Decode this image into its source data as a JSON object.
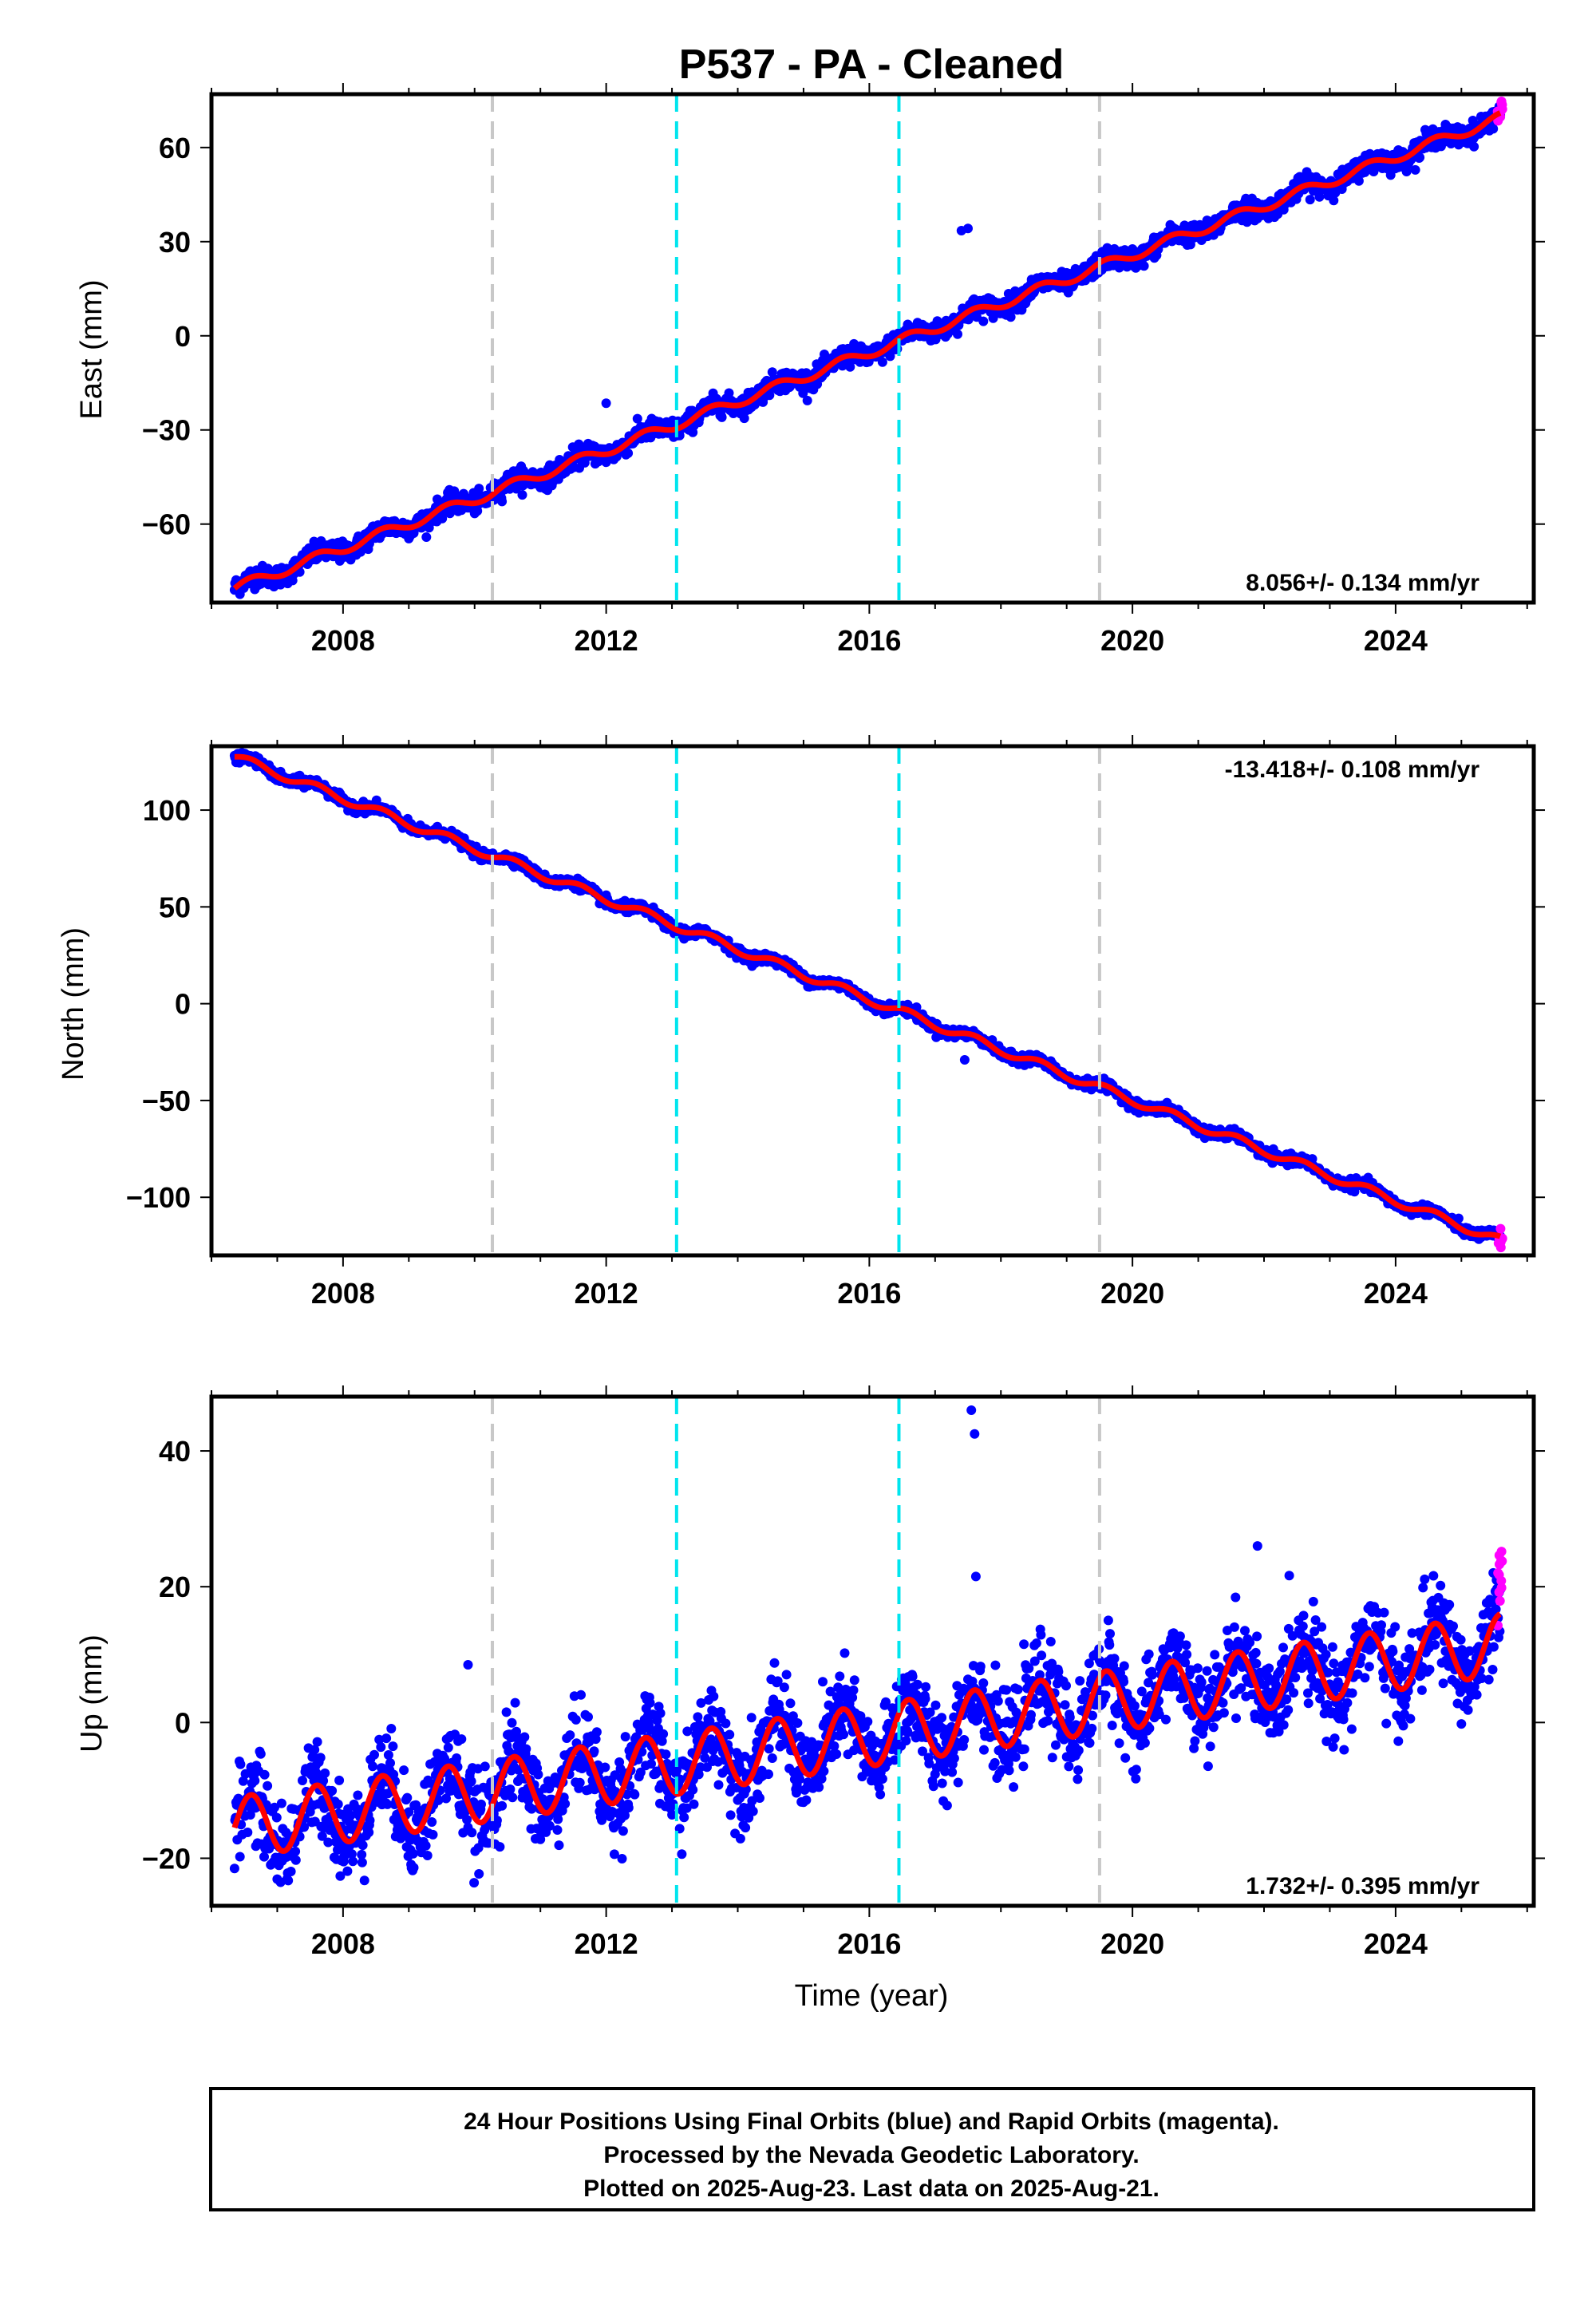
{
  "title": "P537  - PA - Cleaned",
  "x_axis_label": "Time (year)",
  "colors": {
    "final_orbits": "#0000ff",
    "rapid_orbits": "#ff00ff",
    "model_fit": "#ff0000",
    "equipment_change": "#c8c8c8",
    "event": "#00e5ee",
    "frame": "#000000"
  },
  "footer": {
    "line1": "24 Hour Positions Using Final Orbits (blue) and Rapid Orbits (magenta).",
    "line2": "Processed by the Nevada Geodetic Laboratory.",
    "line3": "Plotted on 2025-Aug-23. Last data on 2025-Aug-21."
  },
  "chart_data": [
    {
      "type": "scatter",
      "component": "East",
      "ylabel": "East (mm)",
      "xlim": [
        2006.0,
        2026.1
      ],
      "ylim": [
        -85,
        77
      ],
      "x_ticks": [
        2008,
        2012,
        2016,
        2020,
        2024
      ],
      "x_tick_labels": [
        "2008",
        "2012",
        "2016",
        "2020",
        "2024"
      ],
      "y_ticks": [
        -60,
        -30,
        0,
        30,
        60
      ],
      "y_tick_labels": [
        "−60",
        "−30",
        "0",
        "30",
        "60"
      ],
      "rate_label": "8.056+/- 0.134 mm/yr",
      "rate_position": "bottom-right",
      "series": [
        {
          "kind": "final_orbits",
          "trend_start": [
            2006.35,
            -80.5
          ],
          "trend_end": [
            2025.6,
            69.5
          ],
          "seasonal_amplitude": 1.6,
          "scatter": 1.6
        },
        {
          "kind": "rapid_orbits",
          "x_range": [
            2025.55,
            2025.63
          ],
          "y_approx": 71
        },
        {
          "kind": "model_fit",
          "x": [
            2006.35,
            2025.6
          ],
          "y": [
            -80.5,
            69.5
          ]
        }
      ],
      "outliers": [
        [
          2017.4,
          33.5
        ],
        [
          2017.5,
          34.2
        ],
        [
          2012.0,
          -21.5
        ]
      ],
      "equipment_changes": [
        2010.27,
        2019.5
      ],
      "events": [
        2013.07,
        2016.45
      ]
    },
    {
      "type": "scatter",
      "component": "North",
      "ylabel": "North (mm)",
      "xlim": [
        2006.0,
        2026.1
      ],
      "ylim": [
        -130,
        133
      ],
      "x_ticks": [
        2008,
        2012,
        2016,
        2020,
        2024
      ],
      "x_tick_labels": [
        "2008",
        "2012",
        "2016",
        "2020",
        "2024"
      ],
      "y_ticks": [
        -100,
        -50,
        0,
        50,
        100
      ],
      "y_tick_labels": [
        "−100",
        "−50",
        "0",
        "50",
        "100"
      ],
      "rate_label": "-13.418+/- 0.108 mm/yr",
      "rate_position": "top-right",
      "series": [
        {
          "kind": "final_orbits",
          "trend_start": [
            2006.35,
            127.5
          ],
          "trend_end": [
            2025.6,
            -122.5
          ],
          "seasonal_amplitude": 2.2,
          "scatter": 1.3
        },
        {
          "kind": "rapid_orbits",
          "x_range": [
            2025.55,
            2025.63
          ],
          "y_approx": -121
        },
        {
          "kind": "model_fit",
          "x": [
            2006.35,
            2025.6
          ],
          "y": [
            127.5,
            -122.5
          ]
        }
      ],
      "outliers": [
        [
          2017.45,
          -29
        ]
      ],
      "equipment_changes": [
        2010.27,
        2019.5
      ],
      "events": [
        2013.07,
        2016.45
      ]
    },
    {
      "type": "scatter",
      "component": "Up",
      "ylabel": "Up (mm)",
      "xlim": [
        2006.0,
        2026.1
      ],
      "ylim": [
        -27,
        48
      ],
      "x_ticks": [
        2008,
        2012,
        2016,
        2020,
        2024
      ],
      "x_tick_labels": [
        "2008",
        "2012",
        "2016",
        "2020",
        "2024"
      ],
      "y_ticks": [
        -20,
        0,
        20,
        40
      ],
      "y_tick_labels": [
        "−20",
        "0",
        "20",
        "40"
      ],
      "rate_label": "1.732+/- 0.395 mm/yr",
      "rate_position": "bottom-right",
      "series": [
        {
          "kind": "final_orbits",
          "trend_start": [
            2006.35,
            -15.5
          ],
          "trend_end": [
            2025.6,
            11.5
          ],
          "seasonal_amplitude": 4.5,
          "scatter": 3.2
        },
        {
          "kind": "rapid_orbits",
          "x_range": [
            2025.55,
            2025.63
          ],
          "y_approx": 22
        },
        {
          "kind": "model_fit",
          "x": [
            2006.35,
            2025.6
          ],
          "y": [
            -15.5,
            11.5
          ]
        }
      ],
      "outliers": [
        [
          2017.55,
          46
        ],
        [
          2017.6,
          42.5
        ],
        [
          2017.62,
          21.5
        ],
        [
          2021.9,
          26
        ],
        [
          2009.9,
          8.5
        ]
      ],
      "equipment_changes": [
        2010.27,
        2019.5
      ],
      "events": [
        2013.07,
        2016.45
      ]
    }
  ]
}
